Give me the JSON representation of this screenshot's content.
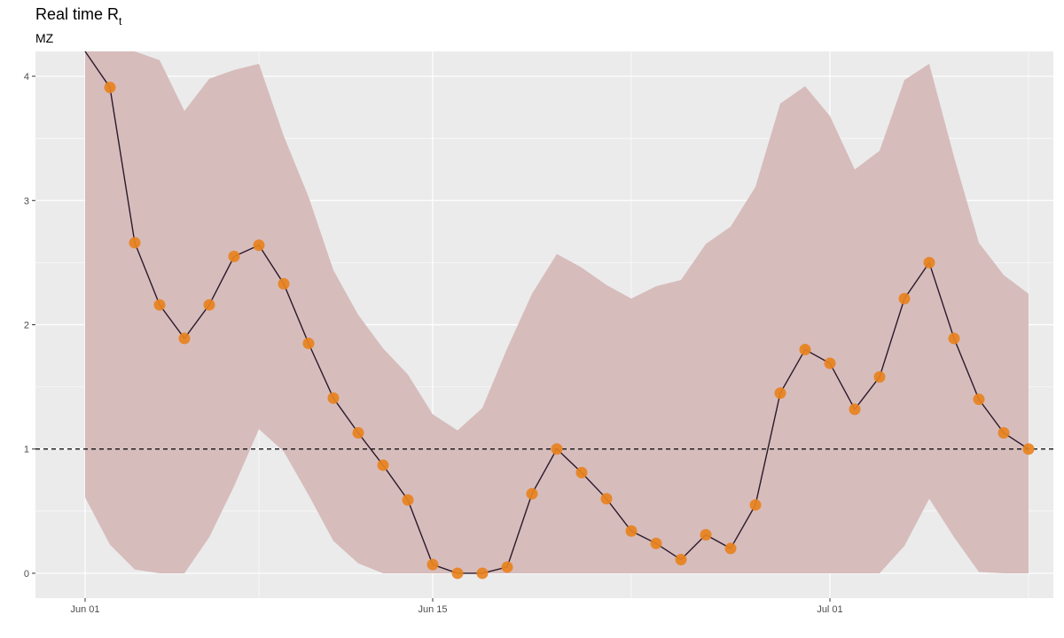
{
  "chart_data": {
    "type": "line",
    "title": "Real time R",
    "title_subscript": "t",
    "subtitle": "MZ",
    "xlabel": "",
    "ylabel": "",
    "x_ticks": [
      "Jun 01",
      "Jun 15",
      "Jul 01"
    ],
    "y_ticks": [
      "0",
      "1",
      "2",
      "3",
      "4"
    ],
    "ylim": [
      -0.2,
      4.2
    ],
    "xlim": [
      "2020-05-30",
      "2020-07-10"
    ],
    "grid": true,
    "reference_line": 1,
    "colors": {
      "panel": "#EBEBEB",
      "band": "#D7BCBC",
      "line": "#2A1A2A",
      "points": "#E8821E",
      "reference": "#000000"
    },
    "series": [
      {
        "dates": [
          "2020-06-02",
          "2020-06-03",
          "2020-06-04",
          "2020-06-05",
          "2020-06-06",
          "2020-06-07",
          "2020-06-08",
          "2020-06-09",
          "2020-06-10",
          "2020-06-11",
          "2020-06-12",
          "2020-06-13",
          "2020-06-14",
          "2020-06-15",
          "2020-06-16",
          "2020-06-17",
          "2020-06-18",
          "2020-06-19",
          "2020-06-20",
          "2020-06-21",
          "2020-06-22",
          "2020-06-23",
          "2020-06-24",
          "2020-06-25",
          "2020-06-26",
          "2020-06-27",
          "2020-06-28",
          "2020-06-29",
          "2020-06-30",
          "2020-07-01",
          "2020-07-02",
          "2020-07-03",
          "2020-07-04",
          "2020-07-05",
          "2020-07-06",
          "2020-07-07",
          "2020-07-08",
          "2020-07-09"
        ],
        "values": [
          3.91,
          2.66,
          2.16,
          1.89,
          2.16,
          2.55,
          2.64,
          2.33,
          1.85,
          1.41,
          1.13,
          0.87,
          0.59,
          0.07,
          0.0,
          0.0,
          0.05,
          0.64,
          1.0,
          0.81,
          0.6,
          0.34,
          0.24,
          0.11,
          0.31,
          0.2,
          0.55,
          1.45,
          1.8,
          1.69,
          1.32,
          1.58,
          2.21,
          2.5,
          1.89,
          1.4,
          1.13,
          1.0
        ]
      }
    ],
    "line_dates": [
      "2020-06-01",
      "2020-06-02",
      "2020-06-03",
      "2020-06-04",
      "2020-06-05",
      "2020-06-06",
      "2020-06-07",
      "2020-06-08",
      "2020-06-09",
      "2020-06-10",
      "2020-06-11",
      "2020-06-12",
      "2020-06-13",
      "2020-06-14",
      "2020-06-15",
      "2020-06-16",
      "2020-06-17",
      "2020-06-18",
      "2020-06-19",
      "2020-06-20",
      "2020-06-21",
      "2020-06-22",
      "2020-06-23",
      "2020-06-24",
      "2020-06-25",
      "2020-06-26",
      "2020-06-27",
      "2020-06-28",
      "2020-06-29",
      "2020-06-30",
      "2020-07-01",
      "2020-07-02",
      "2020-07-03",
      "2020-07-04",
      "2020-07-05",
      "2020-07-06",
      "2020-07-07",
      "2020-07-08",
      "2020-07-09"
    ],
    "line_values": [
      5.5,
      3.91,
      2.66,
      2.16,
      1.89,
      2.16,
      2.55,
      2.64,
      2.33,
      1.85,
      1.41,
      1.13,
      0.87,
      0.59,
      0.07,
      0.0,
      0.0,
      0.05,
      0.64,
      1.0,
      0.81,
      0.6,
      0.34,
      0.24,
      0.11,
      0.31,
      0.2,
      0.55,
      1.45,
      1.8,
      1.69,
      1.32,
      1.58,
      2.21,
      2.5,
      1.89,
      1.4,
      1.13,
      1.0
    ],
    "band": {
      "dates": [
        "2020-06-01",
        "2020-06-02",
        "2020-06-03",
        "2020-06-04",
        "2020-06-05",
        "2020-06-06",
        "2020-06-07",
        "2020-06-08",
        "2020-06-09",
        "2020-06-10",
        "2020-06-11",
        "2020-06-12",
        "2020-06-13",
        "2020-06-14",
        "2020-06-15",
        "2020-06-16",
        "2020-06-17",
        "2020-06-18",
        "2020-06-19",
        "2020-06-20",
        "2020-06-21",
        "2020-06-22",
        "2020-06-23",
        "2020-06-24",
        "2020-06-25",
        "2020-06-26",
        "2020-06-27",
        "2020-06-28",
        "2020-06-29",
        "2020-06-30",
        "2020-07-01",
        "2020-07-02",
        "2020-07-03",
        "2020-07-04",
        "2020-07-05",
        "2020-07-06",
        "2020-07-07",
        "2020-07-08",
        "2020-07-09"
      ],
      "lower": [
        0.61,
        0.23,
        0.03,
        0.0,
        0.0,
        0.29,
        0.7,
        1.16,
        0.98,
        0.63,
        0.26,
        0.08,
        0.0,
        0.0,
        0.0,
        0.0,
        0.0,
        0.0,
        0.0,
        0.0,
        0.0,
        0.0,
        0.0,
        0.0,
        0.0,
        0.0,
        0.0,
        0.0,
        0.0,
        0.0,
        0.0,
        0.0,
        0.0,
        0.22,
        0.6,
        0.29,
        0.01,
        0.0,
        0.0
      ],
      "upper": [
        5.5,
        5.2,
        4.6,
        4.13,
        3.72,
        3.98,
        4.05,
        4.1,
        3.52,
        3.03,
        2.44,
        2.08,
        1.81,
        1.6,
        1.28,
        1.15,
        1.33,
        1.81,
        2.25,
        2.57,
        2.46,
        2.32,
        2.21,
        2.31,
        2.36,
        2.65,
        2.79,
        3.11,
        3.78,
        3.92,
        3.68,
        3.25,
        3.4,
        3.97,
        4.1,
        3.35,
        2.66,
        2.4,
        2.25
      ]
    }
  }
}
